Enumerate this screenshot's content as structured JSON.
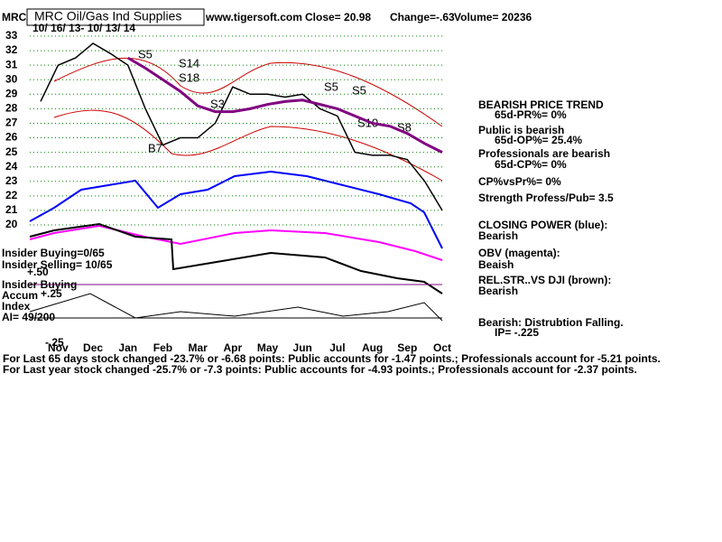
{
  "header": {
    "symbol": "MRC",
    "name": "MRC Oil/Gas Ind Supplies",
    "site": "www.tigersoft.com",
    "close": "Close=  20.98",
    "change": "Change=-.63",
    "volume": "Volume= 20236",
    "dates": "10/ 16/ 13- 10/ 13/ 14"
  },
  "chart_data": {
    "type": "line",
    "categories": [
      null,
      "Nov",
      null,
      "Dec",
      null,
      "Jan",
      null,
      "Feb",
      null,
      "Mar",
      null,
      "Apr",
      null,
      "May",
      null,
      "Jun",
      null,
      "Jul",
      null,
      "Aug",
      null,
      "Sep",
      null,
      "Oct"
    ],
    "series": [
      {
        "color": "#000000",
        "values": [
          28.5,
          31,
          31.5,
          32.5,
          31.8,
          31,
          28,
          25.5,
          26,
          26,
          27,
          29.5,
          29,
          29,
          28.8,
          29,
          28,
          27.5,
          25,
          24.8,
          24.8,
          24.5,
          23,
          21
        ]
      },
      {
        "color": "#800080",
        "values": [
          null,
          null,
          null,
          null,
          null,
          31.5,
          30.8,
          30,
          29.2,
          28.2,
          27.8,
          27.8,
          28,
          28.3,
          28.5,
          28.6,
          28.3,
          28,
          27.5,
          27,
          26.8,
          26.3,
          25.6,
          25
        ]
      }
    ],
    "ylim": [
      20,
      33
    ],
    "yticks": [
      20,
      21,
      22,
      23,
      24,
      25,
      26,
      27,
      28,
      29,
      30,
      31,
      32,
      33
    ],
    "grid": true
  },
  "signals": [
    "S5",
    "S14",
    "S18",
    "S3",
    "B7",
    "S5",
    "S5",
    "S10",
    "S8"
  ],
  "insider": {
    "buying": "Insider Buying=0/65",
    "selling": "Insider Selling= 10/65"
  },
  "accum": {
    "label1": "Insider Buying",
    "label2": "Accum",
    "label3": "Index",
    "ai": "AI= 49/200",
    "plus25": "+.25",
    "plus50": "+.50",
    "minus25": "-.25"
  },
  "right_panel": [
    "BEARISH PRICE TREND",
    "65d-PR%= 0%",
    "Public is bearish",
    "65d-OP%= 25.4%",
    "Professionals are bearish",
    "65d-CP%= 0%",
    "CP%vsPr%=  0%",
    "Strength Profess/Pub= 3.5",
    "CLOSING POWER (blue):",
    "Bearish",
    "OBV (magenta):",
    "Beaish",
    "REL.STR..VS DJI (brown):",
    "Bearish",
    "Bearish:  Distrubtion Falling.",
    "IP= -.225"
  ],
  "footer": [
    "For Last 65 days stock changed -23.7% or -6.68 points:  Public accounts for -1.47 points.;  Professionals account for -5.21 points.",
    "For Last year stock changed -25.7% or -7.3 points:  Public accounts for -4.93 points.;  Professionals account for -2.37 points."
  ]
}
